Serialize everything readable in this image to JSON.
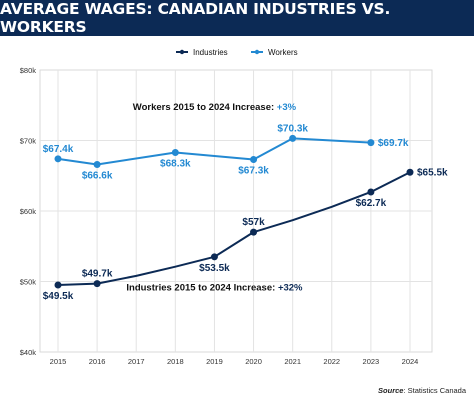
{
  "chart_data": {
    "type": "line",
    "title": "AVERAGE WAGES: CANADIAN INDUSTRIES VS. WORKERS",
    "x": [
      "2015",
      "2016",
      "2017",
      "2018",
      "2019",
      "2020",
      "2021",
      "2022",
      "2023",
      "2024"
    ],
    "y_ticks": [
      "$40k",
      "$50k",
      "$60k",
      "$70k",
      "$80k"
    ],
    "ylim": [
      40,
      80
    ],
    "grid": true,
    "legend_position": "top-center",
    "series": [
      {
        "name": "Industries",
        "color": "#0c2a55",
        "x": [
          "2015",
          "2016",
          "2017",
          "2018",
          "2019",
          "2020",
          "2021",
          "2022",
          "2023",
          "2024"
        ],
        "values": [
          49.5,
          49.7,
          50.8,
          52.1,
          53.5,
          57.0,
          58.7,
          60.6,
          62.7,
          65.5
        ],
        "labeled_points": [
          {
            "x": "2015",
            "value": 49.5,
            "label": "$49.5k",
            "pos": "below"
          },
          {
            "x": "2016",
            "value": 49.7,
            "label": "$49.7k",
            "pos": "above"
          },
          {
            "x": "2019",
            "value": 53.5,
            "label": "$53.5k",
            "pos": "below"
          },
          {
            "x": "2020",
            "value": 57.0,
            "label": "$57k",
            "pos": "above"
          },
          {
            "x": "2023",
            "value": 62.7,
            "label": "$62.7k",
            "pos": "below"
          },
          {
            "x": "2024",
            "value": 65.5,
            "label": "$65.5k",
            "pos": "right"
          }
        ]
      },
      {
        "name": "Workers",
        "color": "#2389d2",
        "x": [
          "2015",
          "2016",
          "2018",
          "2020",
          "2021",
          "2023"
        ],
        "values": [
          67.4,
          66.6,
          68.3,
          67.3,
          70.3,
          69.7
        ],
        "labeled_points": [
          {
            "x": "2015",
            "value": 67.4,
            "label": "$67.4k",
            "pos": "above"
          },
          {
            "x": "2016",
            "value": 66.6,
            "label": "$66.6k",
            "pos": "below"
          },
          {
            "x": "2018",
            "value": 68.3,
            "label": "$68.3k",
            "pos": "below"
          },
          {
            "x": "2020",
            "value": 67.3,
            "label": "$67.3k",
            "pos": "below"
          },
          {
            "x": "2021",
            "value": 70.3,
            "label": "$70.3k",
            "pos": "above"
          },
          {
            "x": "2023",
            "value": 69.7,
            "label": "$69.7k",
            "pos": "right"
          }
        ]
      }
    ],
    "annotations": [
      {
        "prefix": "Workers 2015 to 2024 Increase: ",
        "value": "+3%",
        "color": "#2389d2",
        "x": "2019",
        "y": 74.3
      },
      {
        "prefix": "Industries 2015 to 2024 Increase: ",
        "value": "+32%",
        "color": "#0c2a55",
        "x": "2019",
        "y": 48.7
      }
    ]
  },
  "source": {
    "label": "Source",
    "text": ": Statistics Canada"
  }
}
